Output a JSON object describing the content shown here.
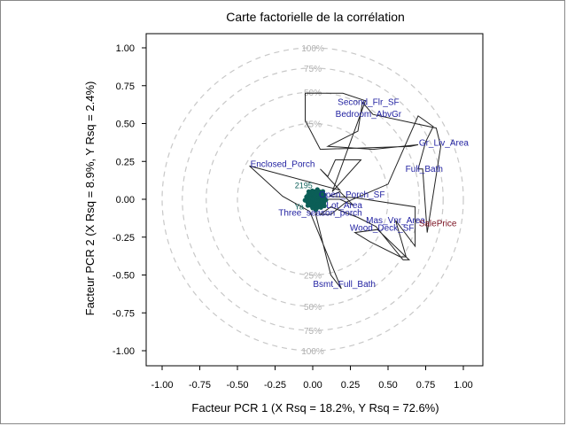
{
  "chart_data": {
    "type": "scatter",
    "title": "Carte factorielle de la corrélation",
    "xlabel": "Facteur PCR 1 (X Rsq = 18.2%, Y Rsq = 72.6%)",
    "ylabel": "Facteur PCR 2 (X Rsq = 8.9%, Y Rsq = 2.4%)",
    "xlim": [
      -1.1,
      1.1
    ],
    "ylim": [
      -1.1,
      1.1
    ],
    "x_ticks": [
      "-1.00",
      "-0.75",
      "-0.50",
      "-0.25",
      "0.00",
      "0.25",
      "0.50",
      "0.75",
      "1.00"
    ],
    "y_ticks": [
      "1.00",
      "0.75",
      "0.50",
      "0.25",
      "0.00",
      "-0.25",
      "-0.50",
      "-0.75",
      "-1.00"
    ],
    "circle_labels": [
      {
        "radius": 1.0,
        "top": "100%",
        "bottom": "100%"
      },
      {
        "radius": 0.866,
        "top": "75%",
        "bottom": "75%"
      },
      {
        "radius": 0.7071,
        "top": "50%",
        "bottom": "50%"
      },
      {
        "radius": 0.5,
        "top": "25%",
        "bottom": "25%"
      }
    ],
    "labeled_points": [
      {
        "name": "Second_Flr_SF",
        "x": 0.37,
        "y": 0.64,
        "kind": "predictor"
      },
      {
        "name": "Bedroom_AbvGr",
        "x": 0.37,
        "y": 0.56,
        "kind": "predictor"
      },
      {
        "name": "Gr_Liv_Area",
        "x": 0.87,
        "y": 0.37,
        "kind": "predictor"
      },
      {
        "name": "Enclosed_Porch",
        "x": -0.2,
        "y": 0.23,
        "kind": "predictor"
      },
      {
        "name": "Full_Bath",
        "x": 0.74,
        "y": 0.2,
        "kind": "predictor"
      },
      {
        "name": "Open_Porch_SF",
        "x": 0.26,
        "y": 0.03,
        "kind": "predictor"
      },
      {
        "name": "Lot_Area",
        "x": 0.21,
        "y": -0.04,
        "kind": "predictor"
      },
      {
        "name": "Three_season_porch",
        "x": 0.05,
        "y": -0.09,
        "kind": "predictor"
      },
      {
        "name": "Mas_Vnr_Area",
        "x": 0.55,
        "y": -0.14,
        "kind": "predictor"
      },
      {
        "name": "Wood_Deck_SF",
        "x": 0.46,
        "y": -0.19,
        "kind": "predictor"
      },
      {
        "name": "SalePrice",
        "x": 0.83,
        "y": -0.16,
        "kind": "response"
      },
      {
        "name": "Bsmt_Full_Bath",
        "x": 0.21,
        "y": -0.56,
        "kind": "predictor"
      }
    ],
    "clutter_labels": [
      {
        "text": "Ya",
        "x": -0.09,
        "y": -0.05
      },
      {
        "text": "2195",
        "x": -0.06,
        "y": 0.09
      },
      {
        "text": "27",
        "x": -0.02,
        "y": 0.02
      }
    ],
    "series": [
      {
        "kind": "trace",
        "values": [
          [
            0.11,
            0.02
          ],
          [
            0.28,
            0.01
          ],
          [
            0.68,
            -0.05
          ],
          [
            0.68,
            -0.31
          ],
          [
            0.55,
            -0.14
          ],
          [
            0.62,
            -0.38
          ],
          [
            0.58,
            -0.38
          ],
          [
            0.38,
            -0.28
          ],
          [
            0.28,
            -0.22
          ],
          [
            0.43,
            -0.2
          ],
          [
            0.64,
            -0.4
          ],
          [
            0.6,
            -0.4
          ],
          [
            0.42,
            -0.18
          ],
          [
            0.3,
            -0.12
          ],
          [
            0.12,
            -0.05
          ],
          [
            0.05,
            -0.1
          ],
          [
            0.12,
            -0.1
          ],
          [
            0.22,
            -0.02
          ],
          [
            0.5,
            0.1
          ],
          [
            0.7,
            0.55
          ],
          [
            0.8,
            0.48
          ],
          [
            0.75,
            0.38
          ],
          [
            0.7,
            0.2
          ],
          [
            0.73,
            0.2
          ],
          [
            0.76,
            -0.22
          ],
          [
            0.85,
            0.35
          ],
          [
            0.82,
            0.47
          ],
          [
            0.4,
            0.56
          ],
          [
            0.33,
            0.64
          ],
          [
            0.3,
            0.45
          ],
          [
            0.1,
            0.35
          ],
          [
            0.4,
            0.33
          ],
          [
            0.7,
            0.36
          ],
          [
            0.65,
            0.35
          ],
          [
            0.05,
            0.33
          ],
          [
            -0.05,
            0.52
          ],
          [
            -0.05,
            0.7
          ],
          [
            0.2,
            0.7
          ],
          [
            0.35,
            0.65
          ],
          [
            0.13,
            0.05
          ],
          [
            0.32,
            0.26
          ],
          [
            0.15,
            0.26
          ],
          [
            0.1,
            0.15
          ],
          [
            0.05,
            0.2
          ],
          [
            0.18,
            0.06
          ],
          [
            -0.42,
            0.22
          ],
          [
            -0.2,
            0.02
          ],
          [
            -0.02,
            -0.08
          ],
          [
            0.19,
            -0.59
          ],
          [
            0.12,
            -0.5
          ],
          [
            0.02,
            -0.1
          ],
          [
            0.05,
            0.0
          ],
          [
            0.18,
            0.0
          ],
          [
            0.27,
            -0.04
          ],
          [
            0.18,
            0.05
          ],
          [
            0.11,
            0.02
          ]
        ]
      }
    ],
    "cluster": {
      "center": [
        0.02,
        0.0
      ],
      "radius": 0.07,
      "color": "#0b5e57"
    },
    "grid": false
  }
}
